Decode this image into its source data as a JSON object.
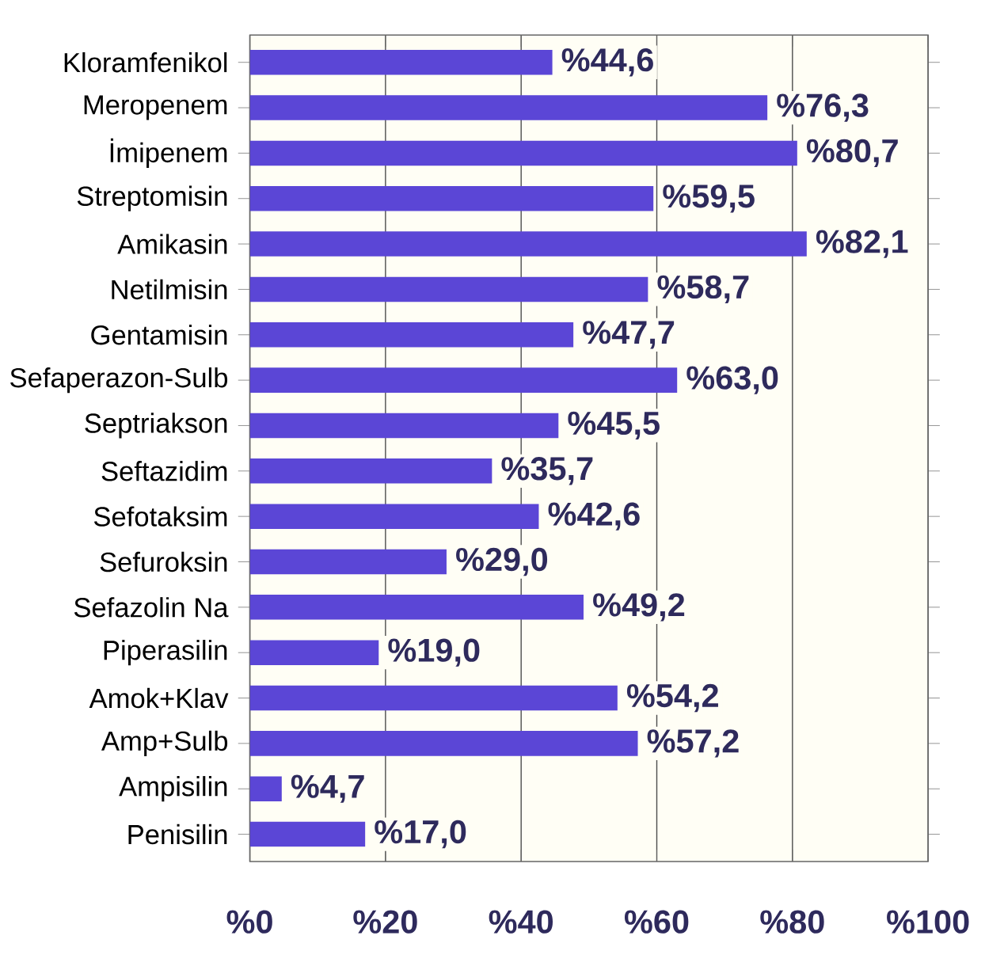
{
  "chart_data": {
    "type": "bar",
    "orientation": "horizontal",
    "color": "#5b46d6",
    "grid": "x",
    "categories": [
      "Kloramfenikol",
      "Meropenem",
      "İmipenem",
      "Streptomisin",
      "Amikasin",
      "Netilmisin",
      "Gentamisin",
      "Sefaperazon-Sulb",
      "Septriakson",
      "Seftazidim",
      "Sefotaksim",
      "Sefuroksin",
      "Sefazolin Na",
      "Piperasilin",
      "Amok+Klav",
      "Amp+Sulb",
      "Ampisilin",
      "Penisilin"
    ],
    "values": [
      44.6,
      76.3,
      80.7,
      59.5,
      82.1,
      58.7,
      47.7,
      63.0,
      45.5,
      35.7,
      42.6,
      29.0,
      49.2,
      19.0,
      54.2,
      57.2,
      4.7,
      17.0
    ],
    "value_labels": [
      "%44,6",
      "%76,3",
      "%80,7",
      "%59,5",
      "%82,1",
      "%58,7",
      "%47,7",
      "%63,0",
      "%45,5",
      "%35,7",
      "%42,6",
      "%29,0",
      "%49,2",
      "%19,0",
      "%54,2",
      "%57,2",
      "%4,7",
      "%17,0"
    ],
    "xlim": [
      0,
      100
    ],
    "xticks": [
      {
        "value": 0,
        "label": "%0"
      },
      {
        "value": 20,
        "label": "%20"
      },
      {
        "value": 40,
        "label": "%40"
      },
      {
        "value": 60,
        "label": "%60"
      },
      {
        "value": 80,
        "label": "%80"
      },
      {
        "value": 100,
        "label": "%100"
      }
    ]
  }
}
